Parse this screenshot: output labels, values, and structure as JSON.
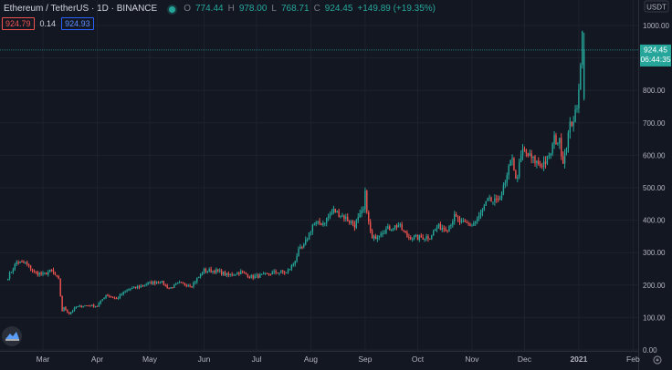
{
  "header": {
    "symbol": "Ethereum / TetherUS · 1D · BINANCE",
    "open_label": "O",
    "open": "774.44",
    "high_label": "H",
    "high": "978.00",
    "low_label": "L",
    "low": "768.71",
    "close_label": "C",
    "close": "924.45",
    "change": "+149.89 (+19.35%)",
    "status_color": "#26a69a"
  },
  "indicators": {
    "sell": "924.79",
    "spread": "0.14",
    "buy": "924.93"
  },
  "price_scale": {
    "currency": "USDT",
    "last_price": "924.45",
    "countdown": "06:44:35",
    "bull_color": "#26a69a",
    "bear_color": "#ef5350"
  },
  "icons": {
    "logo": "tradingview-logo-icon",
    "settings": "gear-icon"
  },
  "chart_data": {
    "type": "candlestick",
    "x_ticks": [
      "Mar",
      "Apr",
      "May",
      "Jun",
      "Jul",
      "Aug",
      "Sep",
      "Oct",
      "Nov",
      "Dec",
      "2021",
      "Feb"
    ],
    "y_ticks": [
      "0.00",
      "100.00",
      "200.00",
      "300.00",
      "400.00",
      "500.00",
      "600.00",
      "700.00",
      "800.00",
      "900.00",
      "1000.00"
    ],
    "ylim": [
      0,
      1000
    ],
    "grid": true,
    "close_path": [
      [
        "2020-02-10",
        225
      ],
      [
        "2020-02-15",
        270
      ],
      [
        "2020-02-20",
        268
      ],
      [
        "2020-02-25",
        240
      ],
      [
        "2020-03-01",
        232
      ],
      [
        "2020-03-06",
        245
      ],
      [
        "2020-03-10",
        215
      ],
      [
        "2020-03-12",
        120
      ],
      [
        "2020-03-13",
        130
      ],
      [
        "2020-03-16",
        112
      ],
      [
        "2020-03-20",
        132
      ],
      [
        "2020-03-25",
        137
      ],
      [
        "2020-04-01",
        136
      ],
      [
        "2020-04-06",
        170
      ],
      [
        "2020-04-12",
        158
      ],
      [
        "2020-04-18",
        185
      ],
      [
        "2020-04-25",
        195
      ],
      [
        "2020-04-30",
        205
      ],
      [
        "2020-05-07",
        212
      ],
      [
        "2020-05-12",
        190
      ],
      [
        "2020-05-18",
        205
      ],
      [
        "2020-05-25",
        200
      ],
      [
        "2020-06-01",
        245
      ],
      [
        "2020-06-08",
        244
      ],
      [
        "2020-06-15",
        230
      ],
      [
        "2020-06-22",
        240
      ],
      [
        "2020-06-28",
        225
      ],
      [
        "2020-07-05",
        230
      ],
      [
        "2020-07-12",
        240
      ],
      [
        "2020-07-18",
        238
      ],
      [
        "2020-07-22",
        265
      ],
      [
        "2020-07-25",
        305
      ],
      [
        "2020-07-28",
        320
      ],
      [
        "2020-08-02",
        385
      ],
      [
        "2020-08-08",
        392
      ],
      [
        "2020-08-14",
        430
      ],
      [
        "2020-08-20",
        410
      ],
      [
        "2020-08-26",
        385
      ],
      [
        "2020-08-31",
        430
      ],
      [
        "2020-09-01",
        480
      ],
      [
        "2020-09-03",
        390
      ],
      [
        "2020-09-05",
        340
      ],
      [
        "2020-09-10",
        365
      ],
      [
        "2020-09-15",
        375
      ],
      [
        "2020-09-20",
        385
      ],
      [
        "2020-09-25",
        350
      ],
      [
        "2020-10-01",
        345
      ],
      [
        "2020-10-08",
        350
      ],
      [
        "2020-10-12",
        380
      ],
      [
        "2020-10-18",
        375
      ],
      [
        "2020-10-22",
        410
      ],
      [
        "2020-10-26",
        390
      ],
      [
        "2020-11-01",
        385
      ],
      [
        "2020-11-05",
        410
      ],
      [
        "2020-11-10",
        460
      ],
      [
        "2020-11-15",
        455
      ],
      [
        "2020-11-20",
        510
      ],
      [
        "2020-11-24",
        600
      ],
      [
        "2020-11-26",
        520
      ],
      [
        "2020-11-30",
        615
      ],
      [
        "2020-12-05",
        590
      ],
      [
        "2020-12-10",
        570
      ],
      [
        "2020-12-15",
        590
      ],
      [
        "2020-12-18",
        650
      ],
      [
        "2020-12-21",
        640
      ],
      [
        "2020-12-23",
        585
      ],
      [
        "2020-12-27",
        690
      ],
      [
        "2020-12-31",
        737
      ],
      [
        "2021-01-03",
        975
      ],
      [
        "2021-01-04",
        924
      ]
    ]
  }
}
